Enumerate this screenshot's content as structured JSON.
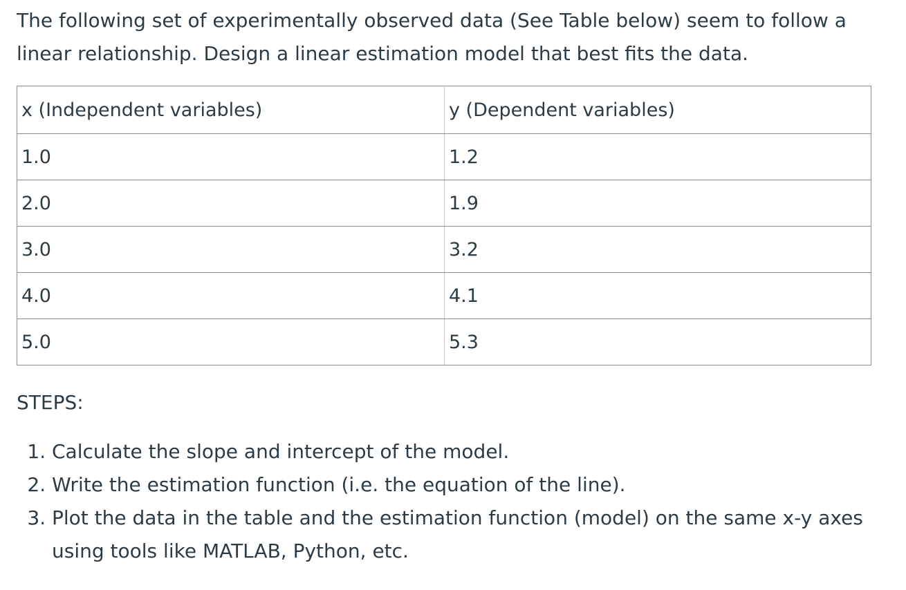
{
  "intro": "The following set of experimentally observed data (See Table below) seem to follow a linear relationship. Design a linear estimation model that best fits the data.",
  "table": {
    "headers": [
      "x (Independent variables)",
      "y (Dependent variables)"
    ],
    "rows": [
      [
        "1.0",
        "1.2"
      ],
      [
        "2.0",
        "1.9"
      ],
      [
        "3.0",
        "3.2"
      ],
      [
        "4.0",
        "4.1"
      ],
      [
        "5.0",
        "5.3"
      ]
    ]
  },
  "steps_heading": "STEPS:",
  "steps": [
    "Calculate the slope and intercept of the model.",
    "Write the estimation function (i.e. the equation of the line).",
    "Plot the data in the table and the estimation function (model) on the same x-y axes using tools like MATLAB, Python, etc."
  ]
}
